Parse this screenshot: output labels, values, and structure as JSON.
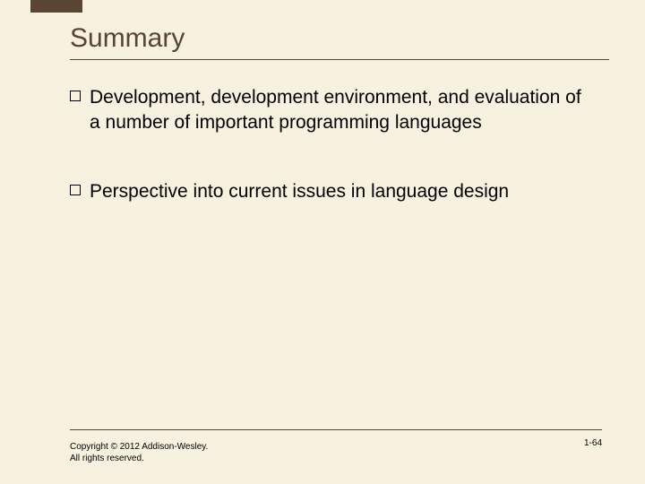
{
  "slide": {
    "title": "Summary",
    "bullets": [
      "Development, development environment, and evaluation of a number of important programming languages",
      "Perspective into current issues in language design"
    ],
    "copyright": "Copyright © 2012 Addison-Wesley. All rights reserved.",
    "page_number": "1-64"
  },
  "style": {
    "background_color": "#f7f1df",
    "accent_color": "#5a4432",
    "title_fontsize": 30,
    "body_fontsize": 21,
    "footer_fontsize": 10,
    "text_color": "#000000",
    "bullet_marker": "hollow-square"
  }
}
